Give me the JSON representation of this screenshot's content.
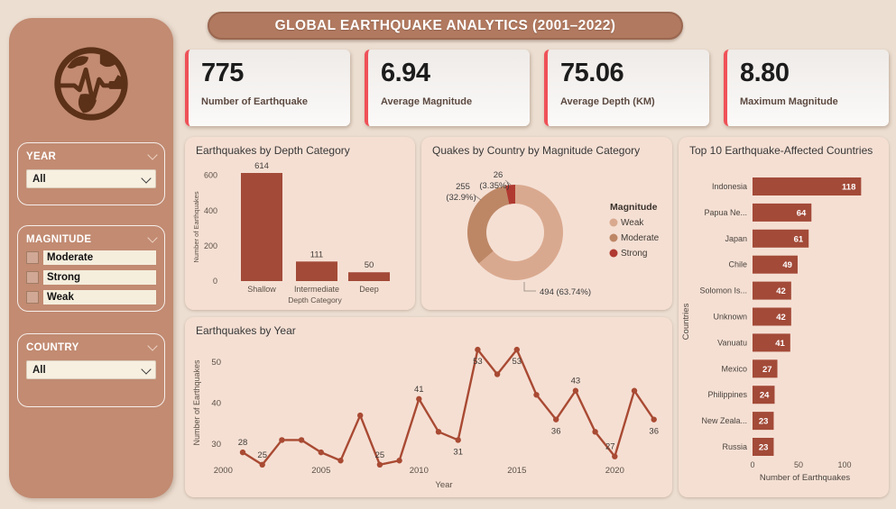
{
  "page_title": "GLOBAL EARTHQUAKE ANALYTICS (2001–2022)",
  "colors": {
    "page_bg": "#ecdfd2",
    "sidebar_bg": "#c28b72",
    "titlebar_bg": "#b1795f",
    "panel_bg": "#f5dfd3",
    "kpi_accent": "#ef5158",
    "bar": "#a34a38",
    "line": "#a94a33",
    "donut_weak": "#d9a98f",
    "donut_moderate": "#bd8766",
    "donut_strong": "#b03a31",
    "icon_brown": "#5b3118"
  },
  "sidebar": {
    "year_filter": {
      "label": "YEAR",
      "value": "All"
    },
    "magnitude_filter": {
      "label": "MAGNITUDE",
      "options": [
        {
          "label": "Moderate",
          "checked": false
        },
        {
          "label": "Strong",
          "checked": false
        },
        {
          "label": "Weak",
          "checked": false
        }
      ]
    },
    "country_filter": {
      "label": "COUNTRY",
      "value": "All"
    }
  },
  "kpis": [
    {
      "value": "775",
      "label": "Number of Earthquake"
    },
    {
      "value": "6.94",
      "label": "Average Magnitude"
    },
    {
      "value": "75.06",
      "label": "Average Depth (KM)"
    },
    {
      "value": "8.80",
      "label": "Maximum Magnitude"
    }
  ],
  "chart_data": [
    {
      "type": "bar",
      "title": "Earthquakes by Depth Category",
      "xlabel": "Depth Category",
      "ylabel": "Number of Earthquakes",
      "categories": [
        "Shallow",
        "Intermediate",
        "Deep"
      ],
      "values": [
        614,
        111,
        50
      ],
      "yticks": [
        0,
        200,
        400,
        600
      ],
      "ylim": [
        0,
        650
      ],
      "grid": false,
      "bar_color": "#a34a38"
    },
    {
      "type": "pie",
      "title": "Quakes by Country by Magnitude Category",
      "legend_title": "Magnitude",
      "legend_position": "right",
      "donut": true,
      "slices": [
        {
          "name": "Weak",
          "value": 494,
          "pct_label": "63.74%",
          "color": "#d9a98f"
        },
        {
          "name": "Moderate",
          "value": 255,
          "pct_label": "32.9%",
          "color": "#bd8766"
        },
        {
          "name": "Strong",
          "value": 26,
          "pct_label": "3.35%",
          "color": "#b03a31"
        }
      ]
    },
    {
      "type": "bar",
      "orientation": "horizontal",
      "title": "Top 10 Earthquake-Affected Countries",
      "xlabel": "Number of Earthquakes",
      "ylabel": "Countries",
      "categories": [
        "Indonesia",
        "Papua Ne...",
        "Japan",
        "Chile",
        "Solomon Is...",
        "Unknown",
        "Vanuatu",
        "Mexico",
        "Philippines",
        "New Zeala...",
        "Russia"
      ],
      "values": [
        118,
        64,
        61,
        49,
        42,
        42,
        41,
        27,
        24,
        23,
        23
      ],
      "xticks": [
        0,
        50,
        100
      ],
      "xlim": [
        0,
        130
      ],
      "grid": false,
      "bar_color": "#a34a38"
    },
    {
      "type": "line",
      "title": "Earthquakes by Year",
      "xlabel": "Year",
      "ylabel": "Number of Earthquakes",
      "x": [
        2001,
        2002,
        2003,
        2004,
        2005,
        2006,
        2007,
        2008,
        2009,
        2010,
        2011,
        2012,
        2013,
        2014,
        2015,
        2016,
        2017,
        2018,
        2019,
        2020,
        2021,
        2022
      ],
      "values": [
        28,
        25,
        31,
        31,
        28,
        26,
        37,
        25,
        26,
        41,
        33,
        31,
        53,
        47,
        53,
        42,
        36,
        43,
        33,
        27,
        43,
        36
      ],
      "labeled_years": [
        2001,
        2002,
        2008,
        2010,
        2012,
        2013,
        2015,
        2017,
        2018,
        2020,
        2022
      ],
      "yticks": [
        30,
        40,
        50
      ],
      "xticks": [
        2000,
        2005,
        2010,
        2015,
        2020
      ],
      "ylim": [
        22,
        57
      ],
      "grid": false,
      "line_color": "#a94a33"
    }
  ]
}
